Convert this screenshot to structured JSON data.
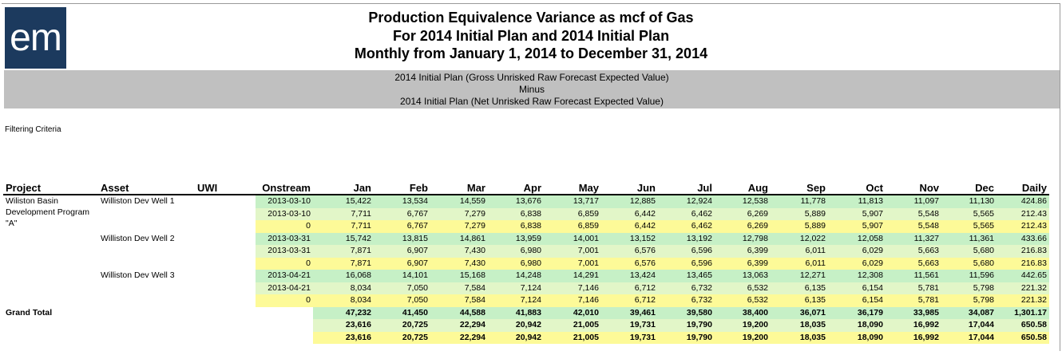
{
  "logo": "em",
  "titles": [
    "Production Equivalence Variance as mcf of Gas",
    "For 2014 Initial Plan and 2014 Initial Plan",
    "Monthly from January 1, 2014 to December 31, 2014"
  ],
  "band": [
    "2014 Initial Plan (Gross Unrisked Raw Forecast Expected Value)",
    "Minus",
    "2014 Initial Plan (Net Unrisked Raw Forecast Expected Value)"
  ],
  "filtering_label": "Filtering Criteria",
  "columns": [
    "Project",
    "Asset",
    "UWI",
    "Onstream",
    "Jan",
    "Feb",
    "Mar",
    "Apr",
    "May",
    "Jun",
    "Jul",
    "Aug",
    "Sep",
    "Oct",
    "Nov",
    "Dec",
    "Daily"
  ],
  "project": "Wiliston Basin Development Program \"A\"",
  "assets": [
    {
      "name": "Williston Dev Well 1",
      "rows": [
        {
          "onstream": "2013-03-10",
          "values": [
            "15,422",
            "13,534",
            "14,559",
            "13,676",
            "13,717",
            "12,885",
            "12,924",
            "12,538",
            "11,778",
            "11,813",
            "11,097",
            "11,130",
            "424.86"
          ]
        },
        {
          "onstream": "2013-03-10",
          "values": [
            "7,711",
            "6,767",
            "7,279",
            "6,838",
            "6,859",
            "6,442",
            "6,462",
            "6,269",
            "5,889",
            "5,907",
            "5,548",
            "5,565",
            "212.43"
          ]
        },
        {
          "onstream": "0",
          "values": [
            "7,711",
            "6,767",
            "7,279",
            "6,838",
            "6,859",
            "6,442",
            "6,462",
            "6,269",
            "5,889",
            "5,907",
            "5,548",
            "5,565",
            "212.43"
          ]
        }
      ]
    },
    {
      "name": "Williston Dev Well 2",
      "rows": [
        {
          "onstream": "2013-03-31",
          "values": [
            "15,742",
            "13,815",
            "14,861",
            "13,959",
            "14,001",
            "13,152",
            "13,192",
            "12,798",
            "12,022",
            "12,058",
            "11,327",
            "11,361",
            "433.66"
          ]
        },
        {
          "onstream": "2013-03-31",
          "values": [
            "7,871",
            "6,907",
            "7,430",
            "6,980",
            "7,001",
            "6,576",
            "6,596",
            "6,399",
            "6,011",
            "6,029",
            "5,663",
            "5,680",
            "216.83"
          ]
        },
        {
          "onstream": "0",
          "values": [
            "7,871",
            "6,907",
            "7,430",
            "6,980",
            "7,001",
            "6,576",
            "6,596",
            "6,399",
            "6,011",
            "6,029",
            "5,663",
            "5,680",
            "216.83"
          ]
        }
      ]
    },
    {
      "name": "Williston Dev Well 3",
      "rows": [
        {
          "onstream": "2013-04-21",
          "values": [
            "16,068",
            "14,101",
            "15,168",
            "14,248",
            "14,291",
            "13,424",
            "13,465",
            "13,063",
            "12,271",
            "12,308",
            "11,561",
            "11,596",
            "442.65"
          ]
        },
        {
          "onstream": "2013-04-21",
          "values": [
            "8,034",
            "7,050",
            "7,584",
            "7,124",
            "7,146",
            "6,712",
            "6,732",
            "6,532",
            "6,135",
            "6,154",
            "5,781",
            "5,798",
            "221.32"
          ]
        },
        {
          "onstream": "0",
          "values": [
            "8,034",
            "7,050",
            "7,584",
            "7,124",
            "7,146",
            "6,712",
            "6,732",
            "6,532",
            "6,135",
            "6,154",
            "5,781",
            "5,798",
            "221.32"
          ]
        }
      ]
    }
  ],
  "grand_total": {
    "label": "Grand Total",
    "rows": [
      [
        "47,232",
        "41,450",
        "44,588",
        "41,883",
        "42,010",
        "39,461",
        "39,580",
        "38,400",
        "36,071",
        "36,179",
        "33,985",
        "34,087",
        "1,301.17"
      ],
      [
        "23,616",
        "20,725",
        "22,294",
        "20,942",
        "21,005",
        "19,731",
        "19,790",
        "19,200",
        "18,035",
        "18,090",
        "16,992",
        "17,044",
        "650.58"
      ],
      [
        "23,616",
        "20,725",
        "22,294",
        "20,942",
        "21,005",
        "19,731",
        "19,790",
        "19,200",
        "18,035",
        "18,090",
        "16,992",
        "17,044",
        "650.58"
      ]
    ]
  },
  "colors": {
    "logo_bg": "#1c3a5e",
    "band_bg": "#c0c0c0",
    "row_green": "#c6f0c6",
    "row_lightgreen": "#e2f6c8",
    "row_yellow": "#fdfa98"
  }
}
